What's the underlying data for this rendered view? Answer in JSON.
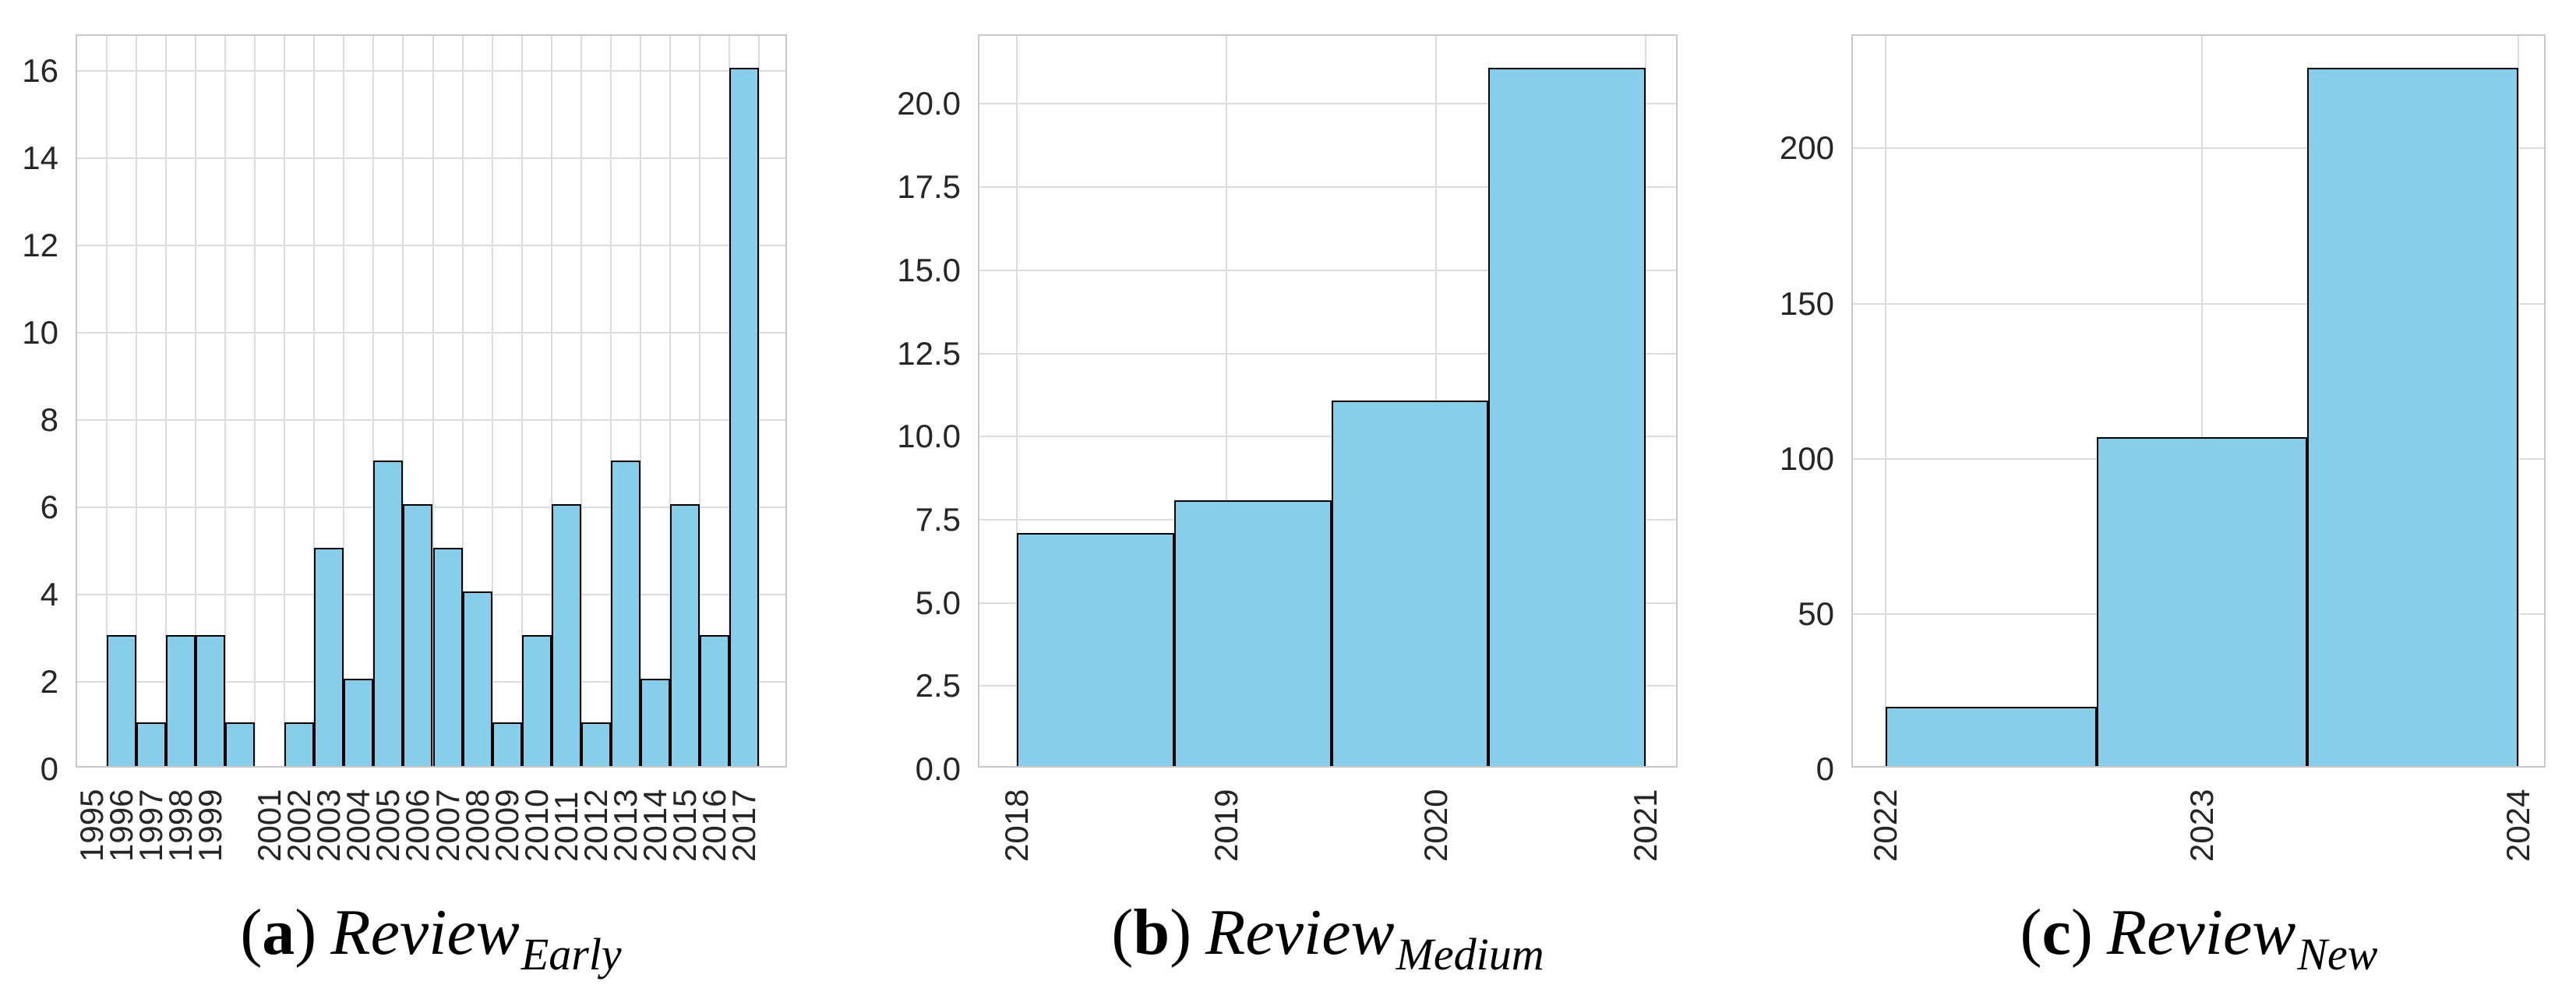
{
  "figure": {
    "kind": "three-panel histogram figure",
    "background": "#ffffff"
  },
  "style": {
    "bar_fill": "#87CEEB",
    "bar_edge": "#000000",
    "grid_color": "#dcdcdc",
    "spine_color": "#c8c8c8",
    "tick_text_color": "#262626",
    "caption_color": "#000000"
  },
  "chart_data": [
    {
      "id": "a",
      "type": "bar",
      "title": "",
      "xlabel": "",
      "ylabel": "",
      "grid": "on",
      "legend": "none",
      "caption": {
        "open_paren": "(",
        "letter": "a",
        "close_paren": ")",
        "name": "Review",
        "subscript": "Early"
      },
      "x_mode": "slots",
      "slots": [
        {
          "year": "1995",
          "value": 0,
          "show_label": true
        },
        {
          "year": "1996",
          "value": 3,
          "show_label": true
        },
        {
          "year": "1997",
          "value": 1,
          "show_label": true
        },
        {
          "year": "1998",
          "value": 3,
          "show_label": true
        },
        {
          "year": "1999",
          "value": 3,
          "show_label": true
        },
        {
          "year": "2000",
          "value": 1,
          "show_label": false
        },
        {
          "year": "2001",
          "value": 0,
          "show_label": true
        },
        {
          "year": "2002",
          "value": 1,
          "show_label": true
        },
        {
          "year": "2003",
          "value": 5,
          "show_label": true
        },
        {
          "year": "2004",
          "value": 2,
          "show_label": true
        },
        {
          "year": "2005",
          "value": 7,
          "show_label": true
        },
        {
          "year": "2006",
          "value": 6,
          "show_label": true
        },
        {
          "year": "2007",
          "value": 5,
          "show_label": true
        },
        {
          "year": "2008",
          "value": 4,
          "show_label": true
        },
        {
          "year": "2009",
          "value": 1,
          "show_label": true
        },
        {
          "year": "2010",
          "value": 3,
          "show_label": true
        },
        {
          "year": "2011",
          "value": 6,
          "show_label": true
        },
        {
          "year": "2012",
          "value": 1,
          "show_label": true
        },
        {
          "year": "2013",
          "value": 7,
          "show_label": true
        },
        {
          "year": "2014",
          "value": 2,
          "show_label": true
        },
        {
          "year": "2015",
          "value": 6,
          "show_label": true
        },
        {
          "year": "2016",
          "value": 3,
          "show_label": true
        },
        {
          "year": "2017",
          "value": 16,
          "show_label": true
        },
        {
          "year": "",
          "value": 0,
          "show_label": false
        }
      ],
      "ytick_labels": [
        "0",
        "2",
        "4",
        "6",
        "8",
        "10",
        "12",
        "14",
        "16"
      ],
      "ytick_values": [
        0,
        2,
        4,
        6,
        8,
        10,
        12,
        14,
        16
      ],
      "ylim": [
        0,
        16.8
      ]
    },
    {
      "id": "b",
      "type": "bar",
      "title": "",
      "xlabel": "",
      "ylabel": "",
      "grid": "on",
      "legend": "none",
      "caption": {
        "open_paren": "(",
        "letter": "b",
        "close_paren": ")",
        "name": "Review",
        "subscript": "Medium"
      },
      "x_mode": "bins",
      "bins": {
        "values": [
          7,
          8,
          11,
          21
        ],
        "bin_span_years": [
          "2018-2021 split into 4 equal bins"
        ],
        "tick_labels": [
          "2018",
          "2019",
          "2020",
          "2021"
        ],
        "tick_fracs": [
          0,
          0.33333,
          0.66667,
          1
        ]
      },
      "ytick_labels": [
        "0.0",
        "2.5",
        "5.0",
        "7.5",
        "10.0",
        "12.5",
        "15.0",
        "17.5",
        "20.0"
      ],
      "ytick_values": [
        0,
        2.5,
        5,
        7.5,
        10,
        12.5,
        15,
        17.5,
        20
      ],
      "ylim": [
        0,
        22.05
      ]
    },
    {
      "id": "c",
      "type": "bar",
      "title": "",
      "xlabel": "",
      "ylabel": "",
      "grid": "on",
      "legend": "none",
      "caption": {
        "open_paren": "(",
        "letter": "c",
        "close_paren": ")",
        "name": "Review",
        "subscript": "New"
      },
      "x_mode": "bins",
      "bins": {
        "values": [
          19,
          106,
          225
        ],
        "bin_span_years": [
          "2022-2024 split into 3 equal bins"
        ],
        "tick_labels": [
          "2022",
          "2023",
          "2024"
        ],
        "tick_fracs": [
          0,
          0.5,
          1
        ]
      },
      "ytick_labels": [
        "0",
        "50",
        "100",
        "150",
        "200"
      ],
      "ytick_values": [
        0,
        50,
        100,
        150,
        200
      ],
      "ylim": [
        0,
        236.25
      ]
    }
  ]
}
